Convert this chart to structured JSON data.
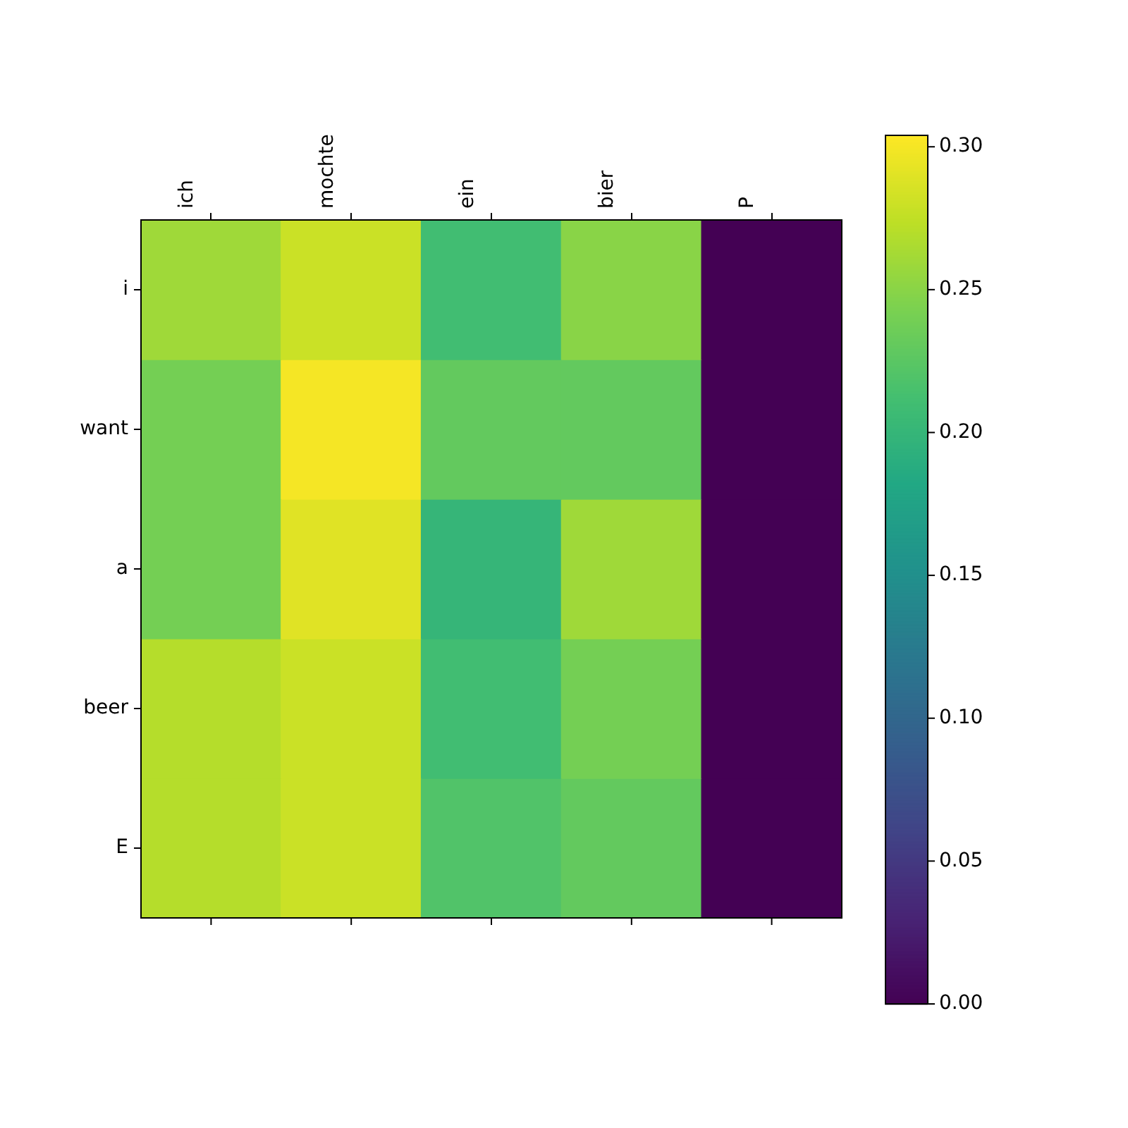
{
  "chart_data": {
    "type": "heatmap",
    "categories": [
      "ich",
      "mochte",
      "ein",
      "bier",
      "P"
    ],
    "y_categories": [
      "i",
      "want",
      "a",
      "beer",
      "E"
    ],
    "cells": [
      [
        0.26,
        0.28,
        0.21,
        0.25,
        0.0
      ],
      [
        0.24,
        0.3,
        0.23,
        0.23,
        0.0
      ],
      [
        0.24,
        0.29,
        0.2,
        0.26,
        0.0
      ],
      [
        0.27,
        0.28,
        0.21,
        0.24,
        0.0
      ],
      [
        0.27,
        0.28,
        0.22,
        0.23,
        0.0
      ]
    ],
    "clim": [
      0,
      0.304
    ],
    "cticks": [
      {
        "value": 0,
        "label": "0.00"
      },
      0.05,
      {
        "value": 0.1,
        "label": "0.10"
      },
      0.15,
      {
        "value": 0.2,
        "label": "0.20"
      },
      0.25,
      {
        "value": 0.3,
        "label": "0.30"
      }
    ]
  }
}
